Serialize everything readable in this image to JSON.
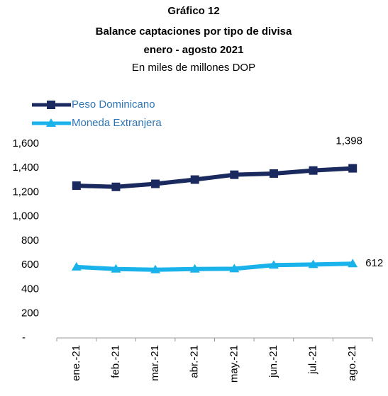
{
  "chart_data": {
    "type": "line",
    "title": [
      "Gráfico 12",
      "Balance captaciones por tipo de divisa",
      "enero - agosto 2021"
    ],
    "subtitle": "En miles de millones DOP",
    "categories": [
      "ene.-21",
      "feb.-21",
      "mar.-21",
      "abr.-21",
      "may.-21",
      "jun.-21",
      "jul.-21",
      "ago.-21"
    ],
    "series": [
      {
        "name": "Peso Dominicano",
        "color": "#1b2a5e",
        "marker": "square",
        "values": [
          1255,
          1245,
          1270,
          1305,
          1345,
          1355,
          1380,
          1398
        ],
        "value_labels": [
          null,
          null,
          null,
          null,
          null,
          null,
          null,
          "1,398"
        ]
      },
      {
        "name": "Moneda Extranjera",
        "color": "#1ab2ea",
        "marker": "triangle",
        "values": [
          585,
          568,
          562,
          568,
          570,
          600,
          605,
          612
        ],
        "value_labels": [
          null,
          null,
          null,
          null,
          null,
          null,
          null,
          "612"
        ]
      }
    ],
    "ylim": [
      0,
      1600
    ],
    "yticks": [
      {
        "value": 0,
        "label": "-"
      },
      200,
      400,
      600,
      800,
      {
        "value": 1000,
        "label": "1,000"
      },
      {
        "value": 1200,
        "label": "1,200"
      },
      {
        "value": 1400,
        "label": "1,400"
      },
      {
        "value": 1600,
        "label": "1,600"
      }
    ],
    "grid": false,
    "legend": "top-left"
  }
}
